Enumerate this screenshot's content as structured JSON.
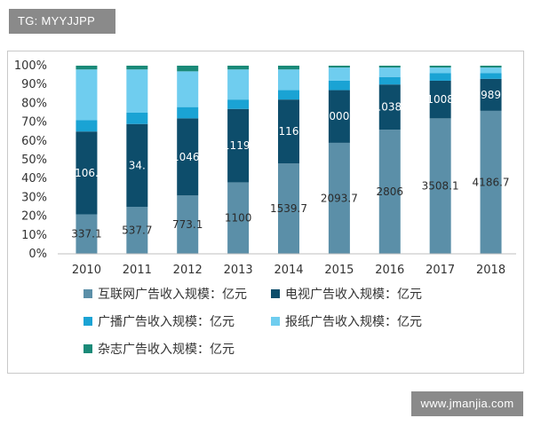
{
  "watermarks": {
    "top_left": "TG: MYYJJPP",
    "bottom_right": "www.jmanjia.com"
  },
  "chart_data": {
    "type": "bar",
    "stacked": true,
    "percent_stacked": true,
    "categories": [
      "2010",
      "2011",
      "2012",
      "2013",
      "2014",
      "2015",
      "2016",
      "2017",
      "2018"
    ],
    "series": [
      {
        "name": "互联网广告收入规模：亿元",
        "color": "#5b8fa8",
        "values": [
          21,
          25,
          31,
          38,
          48,
          59,
          66,
          72,
          76
        ],
        "labels": [
          "337.1",
          "537.7",
          "773.1",
          "1100",
          "1539.7",
          "2093.7",
          "2806",
          "3508.1",
          "4186.7"
        ],
        "label_color": "#2b2b2b"
      },
      {
        "name": "电视广告收入规模：亿元",
        "color": "#0d4d6b",
        "values": [
          44,
          44,
          41,
          39,
          34,
          28,
          24,
          20,
          17
        ],
        "labels": [
          "106.",
          "34.",
          "1046.",
          "1119.",
          "116",
          "000",
          "1038.",
          "1008",
          "989"
        ],
        "label_color": "#ffffff"
      },
      {
        "name": "广播广告收入规模：亿元",
        "color": "#1aa3d4",
        "values": [
          6,
          6,
          6,
          5,
          5,
          5,
          4,
          4,
          3
        ],
        "labels": []
      },
      {
        "name": "报纸广告收入规模：亿元",
        "color": "#6fcdef",
        "values": [
          27,
          23,
          19,
          16,
          11,
          7,
          5,
          3,
          3
        ],
        "labels": []
      },
      {
        "name": "杂志广告收入规模：亿元",
        "color": "#1a8a78",
        "values": [
          2,
          2,
          3,
          2,
          2,
          1,
          1,
          1,
          1
        ],
        "labels": []
      }
    ],
    "y_ticks": [
      "0%",
      "10%",
      "20%",
      "30%",
      "40%",
      "50%",
      "60%",
      "70%",
      "80%",
      "90%",
      "100%"
    ],
    "ylim": [
      0,
      100
    ],
    "legend_position": "bottom"
  }
}
